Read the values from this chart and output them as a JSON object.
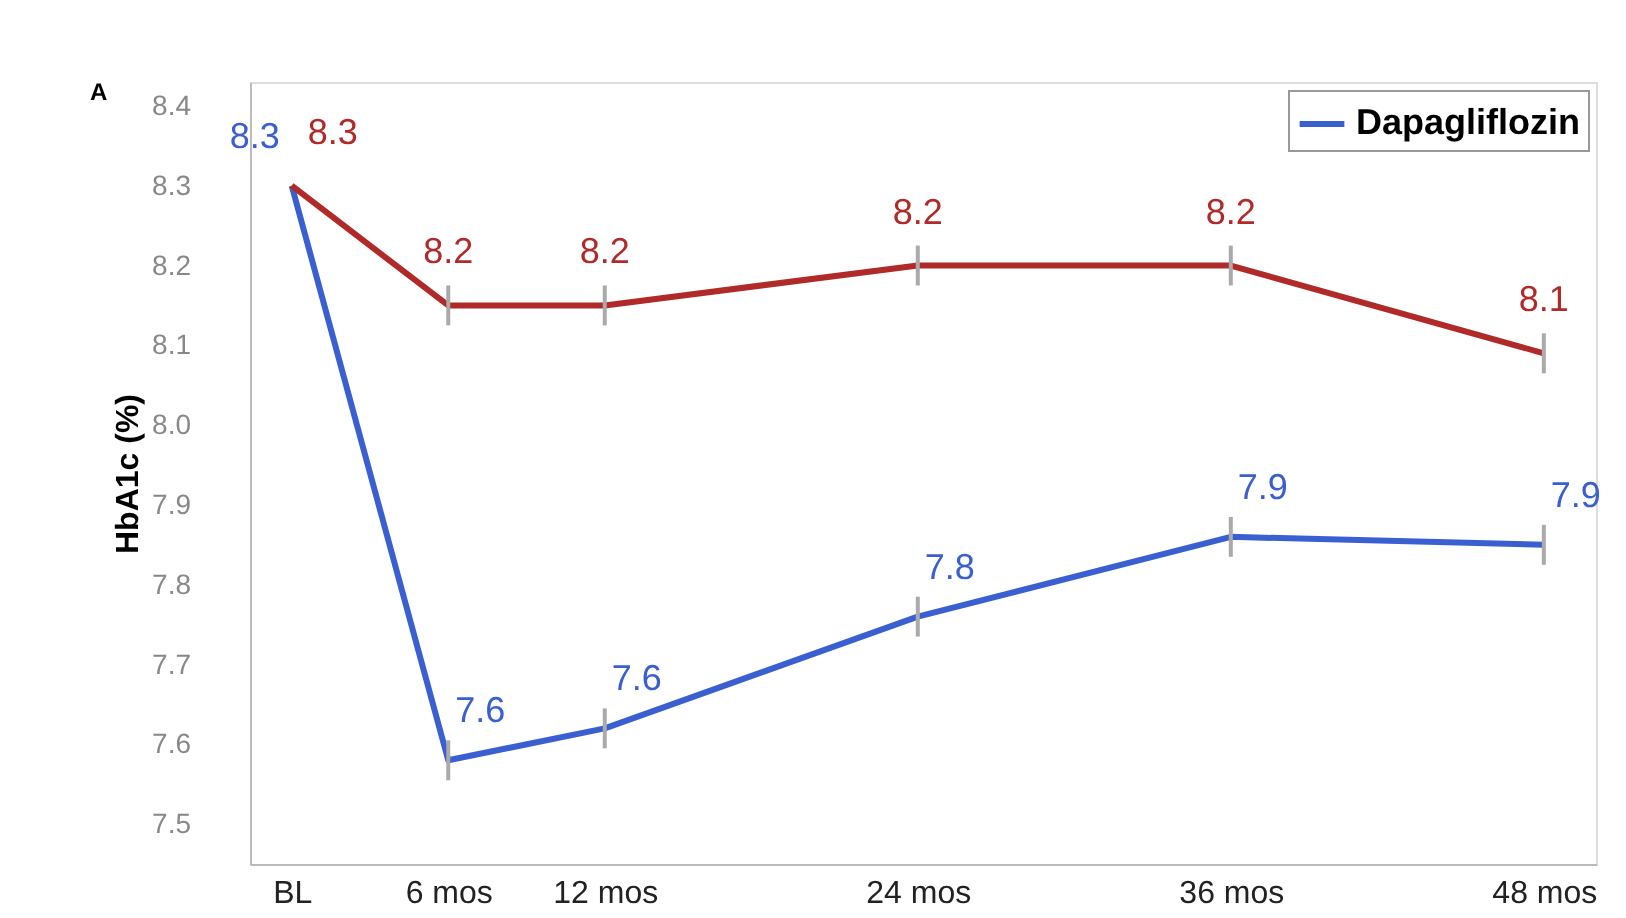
{
  "chart_data": {
    "type": "line",
    "ylabel": "HbA1c (%)",
    "annotations": [
      "A"
    ],
    "x": [
      0,
      6,
      12,
      24,
      36,
      48
    ],
    "series": [
      {
        "name": "Dapagliflozin",
        "color": "#3a5fd0",
        "values": [
          8.3,
          7.58,
          7.62,
          7.76,
          7.86,
          7.85
        ],
        "errors": [
          null,
          0.025,
          0.025,
          0.025,
          0.025,
          0.025
        ],
        "value_labels": [
          "8.3",
          "7.6",
          "7.6",
          "7.8",
          "7.9",
          "7.9"
        ]
      },
      {
        "color": "#b02a2a",
        "values": [
          8.3,
          8.15,
          8.15,
          8.2,
          8.2,
          8.09
        ],
        "errors": [
          null,
          0.025,
          0.025,
          0.025,
          0.025,
          0.025
        ],
        "value_labels": [
          "8.3",
          "8.2",
          "8.2",
          "8.2",
          "8.2",
          "8.1"
        ]
      }
    ],
    "xlim": [
      -1.6,
      50
    ],
    "xticks": [
      {
        "value": 0,
        "label": "BL"
      },
      {
        "value": 6,
        "label": "6 mos"
      },
      {
        "value": 12,
        "label": "12 mos"
      },
      {
        "value": 24,
        "label": "24 mos"
      },
      {
        "value": 36,
        "label": "36 mos"
      },
      {
        "value": 48,
        "label": "48 mos"
      }
    ],
    "ylim": [
      7.45,
      8.43
    ],
    "yticks": [
      7.5,
      7.6,
      7.7,
      7.8,
      7.9,
      {
        "value": 8.0,
        "label": "8.0"
      },
      8.1,
      8.2,
      8.3,
      8.4
    ],
    "grid": false,
    "legend": "top right",
    "marker": "none",
    "line_style": "solid"
  }
}
